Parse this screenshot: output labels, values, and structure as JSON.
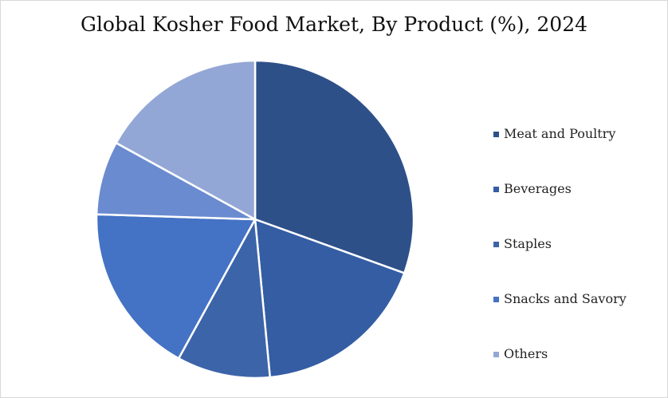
{
  "chart_data": {
    "type": "pie",
    "title": "Global Kosher Food Market, By Product (%), 2024",
    "categories": [
      "Meat and Poultry",
      "Beverages",
      "Staples",
      "Snacks and Savory",
      "",
      "Others"
    ],
    "values": [
      30.5,
      18,
      9.5,
      17.5,
      7.5,
      17
    ],
    "colors": [
      "#2e5089",
      "#345da4",
      "#3c64a9",
      "#4472c4",
      "#6a8bd0",
      "#93a7d6"
    ],
    "legend": {
      "position": "right",
      "items": [
        {
          "label": "Meat and Poultry",
          "color": "#2e5089"
        },
        {
          "label": "Beverages",
          "color": "#345da4"
        },
        {
          "label": "Staples",
          "color": "#3c64a9"
        },
        {
          "label": "Snacks and Savory",
          "color": "#4472c4"
        },
        {
          "label": "Others",
          "color": "#93a7d6"
        }
      ]
    }
  }
}
